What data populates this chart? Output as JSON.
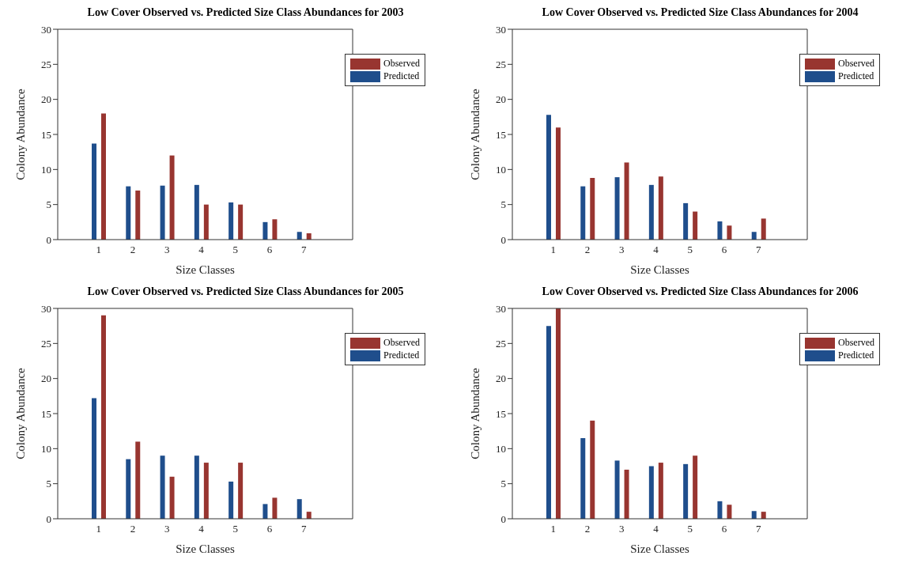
{
  "chart_data": [
    {
      "type": "bar",
      "title": "Low Cover Observed vs. Predicted Size Class Abundances for 2003",
      "xlabel": "Size Classes",
      "ylabel": "Colony Abundance",
      "categories": [
        "1",
        "2",
        "3",
        "4",
        "5",
        "6",
        "7"
      ],
      "ylim": [
        0,
        30
      ],
      "yticks": [
        0,
        5,
        10,
        15,
        20,
        25,
        30
      ],
      "legend": "top right",
      "series": [
        {
          "name": "Predicted",
          "color": "#1f4e8c",
          "values": [
            13.7,
            7.6,
            7.7,
            7.8,
            5.3,
            2.5,
            1.1
          ]
        },
        {
          "name": "Observed",
          "color": "#983530",
          "values": [
            18,
            7,
            12,
            5,
            5,
            2.9,
            0.9
          ]
        }
      ]
    },
    {
      "type": "bar",
      "title": "Low Cover Observed vs. Predicted Size Class Abundances for 2004",
      "xlabel": "Size Classes",
      "ylabel": "Colony Abundance",
      "categories": [
        "1",
        "2",
        "3",
        "4",
        "5",
        "6",
        "7"
      ],
      "ylim": [
        0,
        30
      ],
      "yticks": [
        0,
        5,
        10,
        15,
        20,
        25,
        30
      ],
      "legend": "top right",
      "series": [
        {
          "name": "Predicted",
          "color": "#1f4e8c",
          "values": [
            17.8,
            7.6,
            8.9,
            7.8,
            5.2,
            2.6,
            1.1
          ]
        },
        {
          "name": "Observed",
          "color": "#983530",
          "values": [
            16,
            8.8,
            11,
            9,
            4,
            2,
            3
          ]
        }
      ]
    },
    {
      "type": "bar",
      "title": "Low Cover Observed vs. Predicted Size Class Abundances for 2005",
      "xlabel": "Size Classes",
      "ylabel": "Colony Abundance",
      "categories": [
        "1",
        "2",
        "3",
        "4",
        "5",
        "6",
        "7"
      ],
      "ylim": [
        0,
        30
      ],
      "yticks": [
        0,
        5,
        10,
        15,
        20,
        25,
        30
      ],
      "legend": "top right",
      "series": [
        {
          "name": "Predicted",
          "color": "#1f4e8c",
          "values": [
            17.2,
            8.5,
            9,
            9,
            5.3,
            2.1,
            2.8
          ]
        },
        {
          "name": "Observed",
          "color": "#983530",
          "values": [
            29,
            11,
            6,
            8,
            8,
            3,
            1
          ]
        }
      ]
    },
    {
      "type": "bar",
      "title": "Low Cover Observed vs. Predicted Size Class Abundances for 2006",
      "xlabel": "Size Classes",
      "ylabel": "Colony Abundance",
      "categories": [
        "1",
        "2",
        "3",
        "4",
        "5",
        "6",
        "7"
      ],
      "ylim": [
        0,
        30
      ],
      "yticks": [
        0,
        5,
        10,
        15,
        20,
        25,
        30
      ],
      "legend": "top right",
      "series": [
        {
          "name": "Predicted",
          "color": "#1f4e8c",
          "values": [
            27.5,
            11.5,
            8.3,
            7.5,
            7.8,
            2.5,
            1.1
          ]
        },
        {
          "name": "Observed",
          "color": "#983530",
          "values": [
            30,
            14,
            7,
            8,
            9,
            2,
            1
          ]
        }
      ]
    }
  ]
}
